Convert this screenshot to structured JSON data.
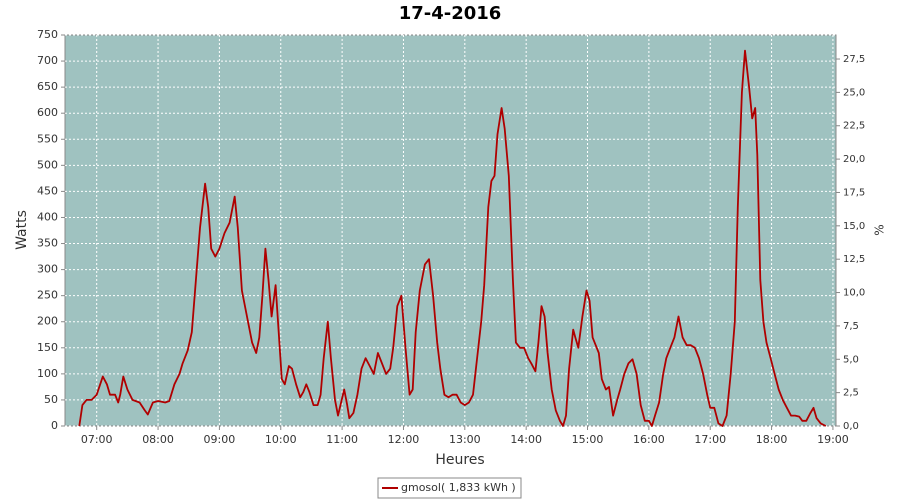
{
  "chart_data": {
    "type": "line",
    "title": "17-4-2016",
    "x_label": "Heures",
    "y_label": "Watts",
    "y2_label": "%",
    "x": [
      "06:43",
      "06:46",
      "06:50",
      "06:55",
      "07:00",
      "07:06",
      "07:10",
      "07:13",
      "07:18",
      "07:21",
      "07:23",
      "07:26",
      "07:30",
      "07:35",
      "07:42",
      "07:47",
      "07:50",
      "07:55",
      "08:00",
      "08:07",
      "08:11",
      "08:16",
      "08:21",
      "08:24",
      "08:29",
      "08:33",
      "08:37",
      "08:41",
      "08:46",
      "08:49",
      "08:52",
      "08:56",
      "09:00",
      "09:05",
      "09:10",
      "09:15",
      "09:18",
      "09:22",
      "09:28",
      "09:32",
      "09:36",
      "09:39",
      "09:42",
      "09:45",
      "09:48",
      "09:51",
      "09:55",
      "09:58",
      "10:01",
      "10:04",
      "10:08",
      "10:11",
      "10:15",
      "10:19",
      "10:22",
      "10:25",
      "10:28",
      "10:32",
      "10:36",
      "10:39",
      "10:42",
      "10:46",
      "10:49",
      "10:53",
      "10:56",
      "10:59",
      "11:02",
      "11:05",
      "11:07",
      "11:11",
      "11:15",
      "11:19",
      "11:23",
      "11:27",
      "11:31",
      "11:35",
      "11:39",
      "11:43",
      "11:47",
      "11:50",
      "11:54",
      "11:58",
      "12:02",
      "12:06",
      "12:09",
      "12:12",
      "12:16",
      "12:21",
      "12:25",
      "12:29",
      "12:33",
      "12:36",
      "12:40",
      "12:44",
      "12:48",
      "12:52",
      "12:56",
      "13:00",
      "13:04",
      "13:08",
      "13:12",
      "13:16",
      "13:19",
      "13:23",
      "13:26",
      "13:29",
      "13:32",
      "13:36",
      "13:39",
      "13:43",
      "13:47",
      "13:50",
      "13:54",
      "13:58",
      "14:02",
      "14:05",
      "14:09",
      "14:12",
      "14:15",
      "14:18",
      "14:21",
      "14:25",
      "14:29",
      "14:33",
      "14:36",
      "14:39",
      "14:42",
      "14:46",
      "14:48",
      "14:51",
      "14:55",
      "14:59",
      "15:02",
      "15:05",
      "15:08",
      "15:11",
      "15:14",
      "15:18",
      "15:21",
      "15:25",
      "15:29",
      "15:32",
      "15:36",
      "15:40",
      "15:44",
      "15:48",
      "15:52",
      "15:56",
      "16:00",
      "16:03",
      "16:06",
      "16:10",
      "16:14",
      "16:17",
      "16:21",
      "16:25",
      "16:29",
      "16:33",
      "16:37",
      "16:41",
      "16:45",
      "16:49",
      "16:53",
      "16:57",
      "17:00",
      "17:04",
      "17:08",
      "17:12",
      "17:16",
      "17:20",
      "17:24",
      "17:27",
      "17:31",
      "17:34",
      "17:38",
      "17:41",
      "17:44",
      "17:46",
      "17:49",
      "17:52",
      "17:55",
      "17:59",
      "18:03",
      "18:07",
      "18:11",
      "18:15",
      "18:19",
      "18:23",
      "18:27",
      "18:30",
      "18:34",
      "18:38",
      "18:41",
      "18:44",
      "18:48",
      "18:53"
    ],
    "series": [
      {
        "name": "gmosol( 1,833 kWh )",
        "color": "#b00000",
        "values": [
          0,
          40,
          50,
          50,
          60,
          95,
          80,
          60,
          60,
          45,
          60,
          95,
          70,
          50,
          45,
          30,
          22,
          45,
          48,
          45,
          48,
          80,
          100,
          120,
          145,
          180,
          280,
          380,
          465,
          420,
          340,
          325,
          340,
          370,
          390,
          440,
          380,
          260,
          200,
          160,
          140,
          170,
          250,
          340,
          280,
          210,
          270,
          180,
          90,
          80,
          115,
          110,
          80,
          55,
          65,
          80,
          65,
          40,
          40,
          60,
          130,
          200,
          130,
          50,
          20,
          45,
          70,
          40,
          15,
          25,
          60,
          110,
          130,
          115,
          100,
          140,
          120,
          100,
          110,
          150,
          230,
          250,
          150,
          60,
          70,
          180,
          260,
          310,
          320,
          250,
          160,
          110,
          60,
          55,
          60,
          60,
          45,
          40,
          45,
          60,
          130,
          200,
          270,
          420,
          470,
          480,
          560,
          610,
          570,
          480,
          280,
          160,
          150,
          150,
          130,
          120,
          105,
          160,
          230,
          210,
          140,
          70,
          30,
          10,
          0,
          20,
          110,
          185,
          170,
          150,
          210,
          260,
          240,
          170,
          155,
          140,
          90,
          70,
          75,
          20,
          50,
          70,
          100,
          120,
          128,
          100,
          40,
          10,
          10,
          0,
          20,
          45,
          100,
          130,
          150,
          170,
          210,
          170,
          155,
          155,
          150,
          130,
          100,
          60,
          35,
          35,
          5,
          0,
          20,
          100,
          200,
          420,
          640,
          720,
          650,
          590,
          610,
          520,
          280,
          200,
          160,
          130,
          100,
          70,
          50,
          35,
          20,
          20,
          18,
          10,
          10,
          25,
          35,
          15,
          5,
          0
        ]
      }
    ],
    "xlim": [
      "06:29",
      "19:03"
    ],
    "xticks": [
      "07:00",
      "08:00",
      "09:00",
      "10:00",
      "11:00",
      "12:00",
      "13:00",
      "14:00",
      "15:00",
      "16:00",
      "17:00",
      "18:00",
      "19:00"
    ],
    "ylim": [
      0,
      750
    ],
    "yticks": [
      0,
      50,
      100,
      150,
      200,
      250,
      300,
      350,
      400,
      450,
      500,
      550,
      600,
      650,
      700,
      750
    ],
    "y2lim": [
      0,
      29.3
    ],
    "y2ticks": [
      {
        "value": 0,
        "label": "0,0"
      },
      {
        "value": 2.5,
        "label": "2,5"
      },
      {
        "value": 5,
        "label": "5,0"
      },
      {
        "value": 7.5,
        "label": "7,5"
      },
      {
        "value": 10,
        "label": "10,0"
      },
      {
        "value": 12.5,
        "label": "12,5"
      },
      {
        "value": 15,
        "label": "15,0"
      },
      {
        "value": 17.5,
        "label": "17,5"
      },
      {
        "value": 20,
        "label": "20,0"
      },
      {
        "value": 22.5,
        "label": "22,5"
      },
      {
        "value": 25,
        "label": "25,0"
      },
      {
        "value": 27.5,
        "label": "27,5"
      }
    ],
    "grid": true,
    "legend": "bottom"
  }
}
